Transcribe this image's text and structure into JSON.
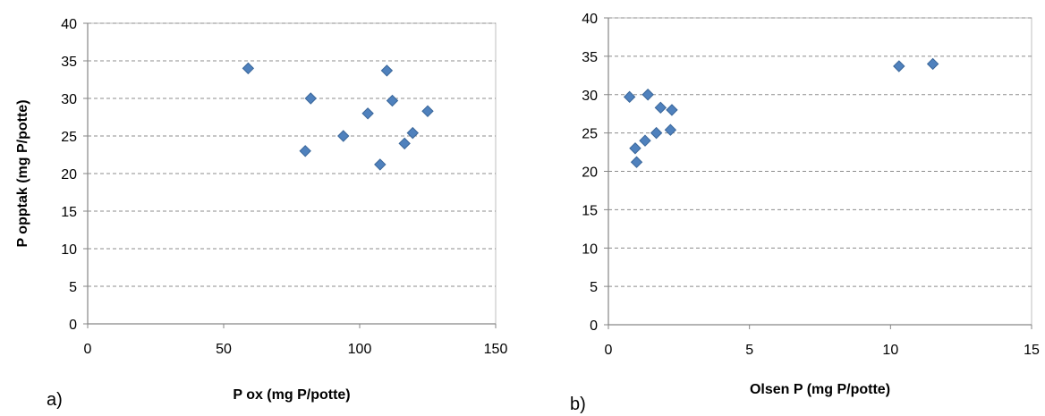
{
  "colors": {
    "marker_fill": "#4F81BD",
    "marker_stroke": "#3A6699",
    "gridline": "#8C8C8C",
    "axis": "#868686",
    "plot_border": "#BFBFBF"
  },
  "chart_data": [
    {
      "type": "scatter",
      "panel_label": "a)",
      "xlabel": "P ox (mg P/potte)",
      "ylabel": "P opptak (mg P/potte)",
      "xlim": [
        0,
        150
      ],
      "ylim": [
        0,
        40
      ],
      "x_ticks": [
        "0",
        "50",
        "100",
        "150"
      ],
      "y_ticks": [
        "0",
        "5",
        "10",
        "15",
        "20",
        "25",
        "30",
        "35",
        "40"
      ],
      "grid": "horizontal dashed",
      "points": [
        {
          "x": 59,
          "y": 34.0
        },
        {
          "x": 80,
          "y": 23.0
        },
        {
          "x": 82,
          "y": 30.0
        },
        {
          "x": 94,
          "y": 25.0
        },
        {
          "x": 103,
          "y": 28.0
        },
        {
          "x": 107.5,
          "y": 21.2
        },
        {
          "x": 110,
          "y": 33.7
        },
        {
          "x": 112,
          "y": 29.7
        },
        {
          "x": 116.5,
          "y": 24.0
        },
        {
          "x": 119.5,
          "y": 25.4
        },
        {
          "x": 125,
          "y": 28.3
        }
      ]
    },
    {
      "type": "scatter",
      "panel_label": "b)",
      "xlabel": "Olsen P (mg P/potte)",
      "ylabel": "",
      "xlim": [
        0,
        15
      ],
      "ylim": [
        0,
        40
      ],
      "x_ticks": [
        "0",
        "5",
        "10",
        "15"
      ],
      "y_ticks": [
        "0",
        "5",
        "10",
        "15",
        "20",
        "25",
        "30",
        "35",
        "40"
      ],
      "grid": "horizontal dashed",
      "points": [
        {
          "x": 0.75,
          "y": 29.7
        },
        {
          "x": 0.95,
          "y": 23.0
        },
        {
          "x": 1.0,
          "y": 21.2
        },
        {
          "x": 1.3,
          "y": 24.0
        },
        {
          "x": 1.4,
          "y": 30.0
        },
        {
          "x": 1.7,
          "y": 25.0
        },
        {
          "x": 1.85,
          "y": 28.3
        },
        {
          "x": 2.2,
          "y": 25.4
        },
        {
          "x": 2.25,
          "y": 28.0
        },
        {
          "x": 10.3,
          "y": 33.7
        },
        {
          "x": 11.5,
          "y": 34.0
        }
      ]
    }
  ]
}
